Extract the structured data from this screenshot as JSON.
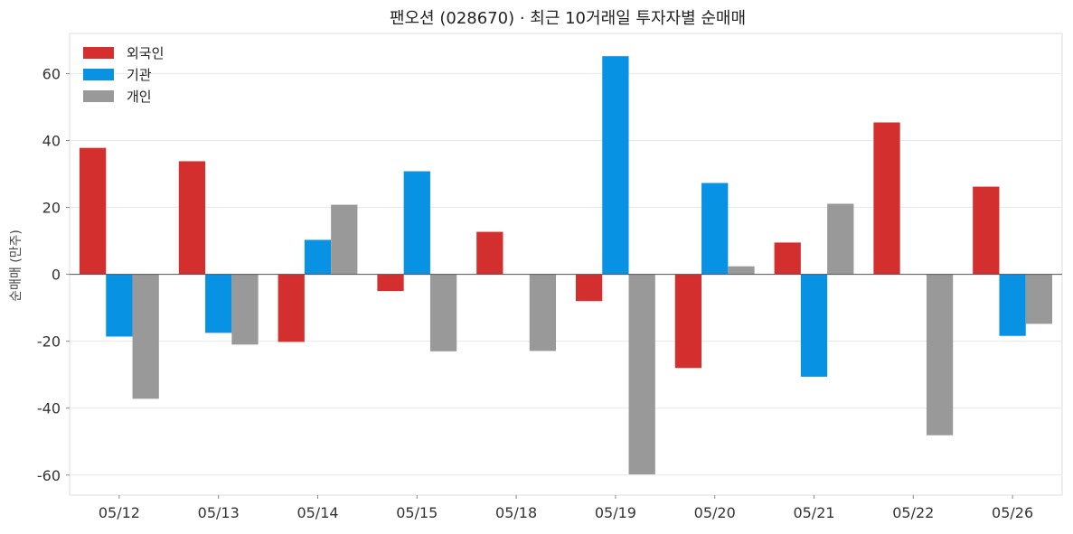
{
  "chart_data": {
    "type": "bar",
    "title": "팬오션 (028670) · 최근 10거래일 투자자별 순매매",
    "xlabel": "",
    "ylabel": "순매매 (만주)",
    "ylim": [
      -66,
      72
    ],
    "yticks": [
      -60,
      -40,
      -20,
      0,
      20,
      40,
      60
    ],
    "grid": true,
    "legend_position": "top-left",
    "categories": [
      "05/12",
      "05/13",
      "05/14",
      "05/15",
      "05/18",
      "05/19",
      "05/20",
      "05/21",
      "05/22",
      "05/26"
    ],
    "series": [
      {
        "name": "외국인",
        "color": "#d32f2f",
        "values": [
          37.8,
          33.8,
          -20.2,
          -5.0,
          12.7,
          -8.0,
          -28.0,
          9.5,
          45.4,
          26.2
        ]
      },
      {
        "name": "기관",
        "color": "#0892e3",
        "values": [
          -18.6,
          -17.5,
          10.3,
          30.8,
          0,
          65.2,
          27.3,
          -30.6,
          0,
          -18.4
        ]
      },
      {
        "name": "개인",
        "color": "#999999",
        "values": [
          -37.2,
          -21.0,
          20.8,
          -23.0,
          -22.9,
          -59.8,
          2.4,
          21.1,
          -48.1,
          -14.8
        ]
      }
    ]
  }
}
